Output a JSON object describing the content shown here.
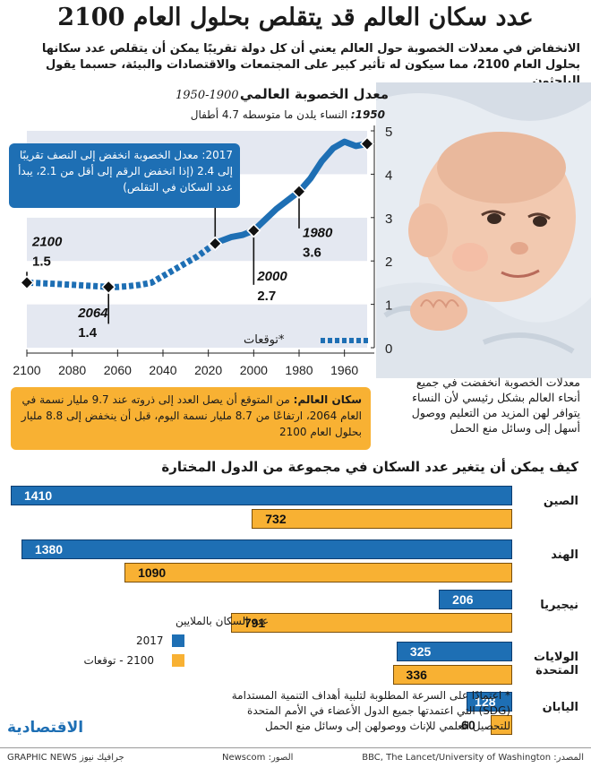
{
  "header": {
    "title": "عدد سكان العالم قد يتقلص بحلول العام 2100",
    "subtitle": "الانخفاض في معدلات الخصوبة حول العالم يعني أن كل دولة تقريبًا يمكن أن يتقلص عدد سكانها بحلول العام 2100، مما سيكون له تأثير كبير على المجتمعات والاقتصادات والبيئة، حسبما يقول الباحثون"
  },
  "fertility": {
    "title": "معدل الخصوبة العالمي",
    "years": "1950-1900",
    "note_year": "1950:",
    "note_text": "النساء يلدن ما متوسطه 4.7 أطفال",
    "callout_2017": "2017: معدل الخصوبة انخفض إلى النصف تقريبًا إلى 2.4 (إذا انخفض الرقم إلى أقل من 2.1، يبدأ عدد السكان في التقلص)",
    "forecast_label": "توقعات*",
    "annotations": [
      {
        "year": "2100",
        "value": "1.5"
      },
      {
        "year": "2064",
        "value": "1.4"
      },
      {
        "year": "2000",
        "value": "2.7"
      },
      {
        "year": "1980",
        "value": "3.6"
      }
    ]
  },
  "photo_caption": "معدلات الخصوبة انخفضت في جميع أنحاء العالم بشكل رئيسي لأن النساء يتوافر لهن المزيد من التعليم ووصول أسهل إلى وسائل منع الحمل",
  "world_population": {
    "label": "سكان العالم:",
    "text": "من المتوقع أن يصل العدد إلى ذروته عند 9.7 مليار نسمة في العام 2064، ارتفاعًا من 8.7 مليار نسمة اليوم، قبل أن ينخفض إلى 8.8 مليار بحلول العام 2100"
  },
  "projection": {
    "title": "كيف يمكن أن يتغير عدد السكان في مجموعة من الدول المختارة",
    "legend_title": "عدد السكان بالملايين",
    "legend_2017": "2017",
    "legend_2100": "2100 - توقعات",
    "colors": {
      "y2017": "#1e6fb4",
      "y2100": "#f8b133"
    }
  },
  "sdg_note": "* اعتمادًا على السرعة المطلوبة لتلبية أهداف التنمية المستدامة (SDG) التي اعتمدتها جميع الدول الأعضاء في الأمم المتحدة للتحصيل العلمي للإناث ووصولهن إلى وسائل منع الحمل",
  "logo": "الاقتصادية",
  "footer": {
    "source": "المصدر: BBC, The Lancet/University of Washington",
    "photo": "الصور: Newscom",
    "credit": "GRAPHIC NEWS جرافيك نيوز"
  },
  "chart_data": [
    {
      "type": "line",
      "title": "معدل الخصوبة العالمي",
      "x_axis": "reversed",
      "x_ticks": [
        2100,
        2080,
        2060,
        2040,
        2020,
        2000,
        1980,
        1960
      ],
      "y_ticks": [
        0,
        1,
        2,
        3,
        4,
        5
      ],
      "xlim": [
        1950,
        2100
      ],
      "ylim": [
        0,
        5
      ],
      "series": [
        {
          "name": "",
          "style": "solid",
          "x": [
            1950,
            1955,
            1960,
            1965,
            1970,
            1975,
            1980,
            1985,
            1990,
            1995,
            2000,
            2005,
            2010,
            2015,
            2017
          ],
          "y": [
            4.7,
            4.65,
            4.75,
            4.6,
            4.3,
            3.9,
            3.6,
            3.4,
            3.2,
            2.95,
            2.7,
            2.6,
            2.55,
            2.45,
            2.4
          ]
        },
        {
          "name": "توقعات*",
          "style": "dotted",
          "x": [
            2017,
            2025,
            2030,
            2035,
            2040,
            2045,
            2050,
            2055,
            2060,
            2064,
            2070,
            2080,
            2090,
            2100
          ],
          "y": [
            2.4,
            2.1,
            1.95,
            1.8,
            1.65,
            1.5,
            1.45,
            1.42,
            1.4,
            1.4,
            1.42,
            1.45,
            1.48,
            1.5
          ]
        }
      ],
      "markers": [
        {
          "x": 2100,
          "y": 1.5
        },
        {
          "x": 2064,
          "y": 1.4
        },
        {
          "x": 2017,
          "y": 2.4
        },
        {
          "x": 2000,
          "y": 2.7
        },
        {
          "x": 1980,
          "y": 3.6
        },
        {
          "x": 1950,
          "y": 4.7
        }
      ]
    },
    {
      "type": "bar",
      "title": "كيف يمكن أن يتغير عدد السكان في مجموعة من الدول المختارة",
      "categories": [
        "الصين",
        "الهند",
        "نيجيريا",
        "الولايات المتحدة",
        "اليابان"
      ],
      "series": [
        {
          "name": "2017",
          "values": [
            1410,
            1380,
            206,
            325,
            128
          ]
        },
        {
          "name": "2100 - توقعات",
          "values": [
            732,
            1090,
            791,
            336,
            60
          ]
        }
      ]
    }
  ]
}
